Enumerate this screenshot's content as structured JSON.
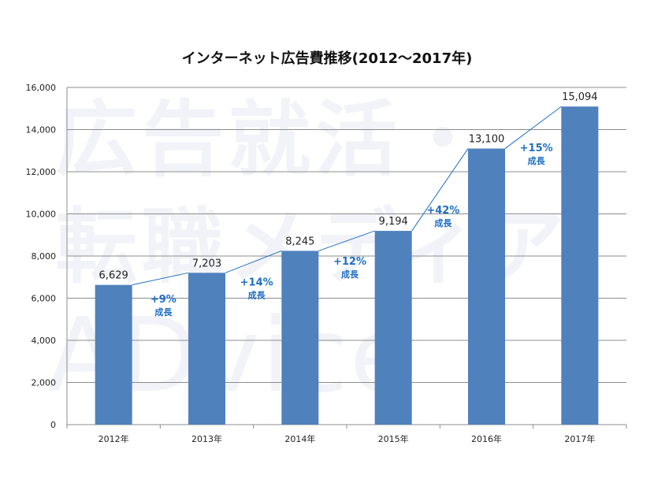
{
  "watermark": {
    "line1": "広告就活・",
    "line2": "転職メディア",
    "line3": "ADvice"
  },
  "chart_data": {
    "type": "bar",
    "title": "インターネット広告費推移(2012〜2017年)",
    "xlabel": "",
    "ylabel": "",
    "categories": [
      "2012年",
      "2013年",
      "2014年",
      "2015年",
      "2016年",
      "2017年"
    ],
    "values": [
      6629,
      7203,
      8245,
      9194,
      13100,
      15094
    ],
    "value_labels": [
      "6,629",
      "7,203",
      "8,245",
      "9,194",
      "13,100",
      "15,094"
    ],
    "ylim": [
      0,
      16000
    ],
    "yticks": [
      0,
      2000,
      4000,
      6000,
      8000,
      10000,
      12000,
      14000,
      16000
    ],
    "ytick_labels": [
      "0",
      "2,000",
      "4,000",
      "6,000",
      "8,000",
      "10,000",
      "12,000",
      "14,000",
      "16,000"
    ],
    "grid": true,
    "legend": "none",
    "bar_color": "#4f81bd",
    "growth_annotations": [
      {
        "rate": "+9%",
        "label": "成長"
      },
      {
        "rate": "+14%",
        "label": "成長"
      },
      {
        "rate": "+12%",
        "label": "成長"
      },
      {
        "rate": "+42%",
        "label": "成長"
      },
      {
        "rate": "+15%",
        "label": "成長"
      }
    ],
    "annotation_color": "#1f6fc6"
  }
}
